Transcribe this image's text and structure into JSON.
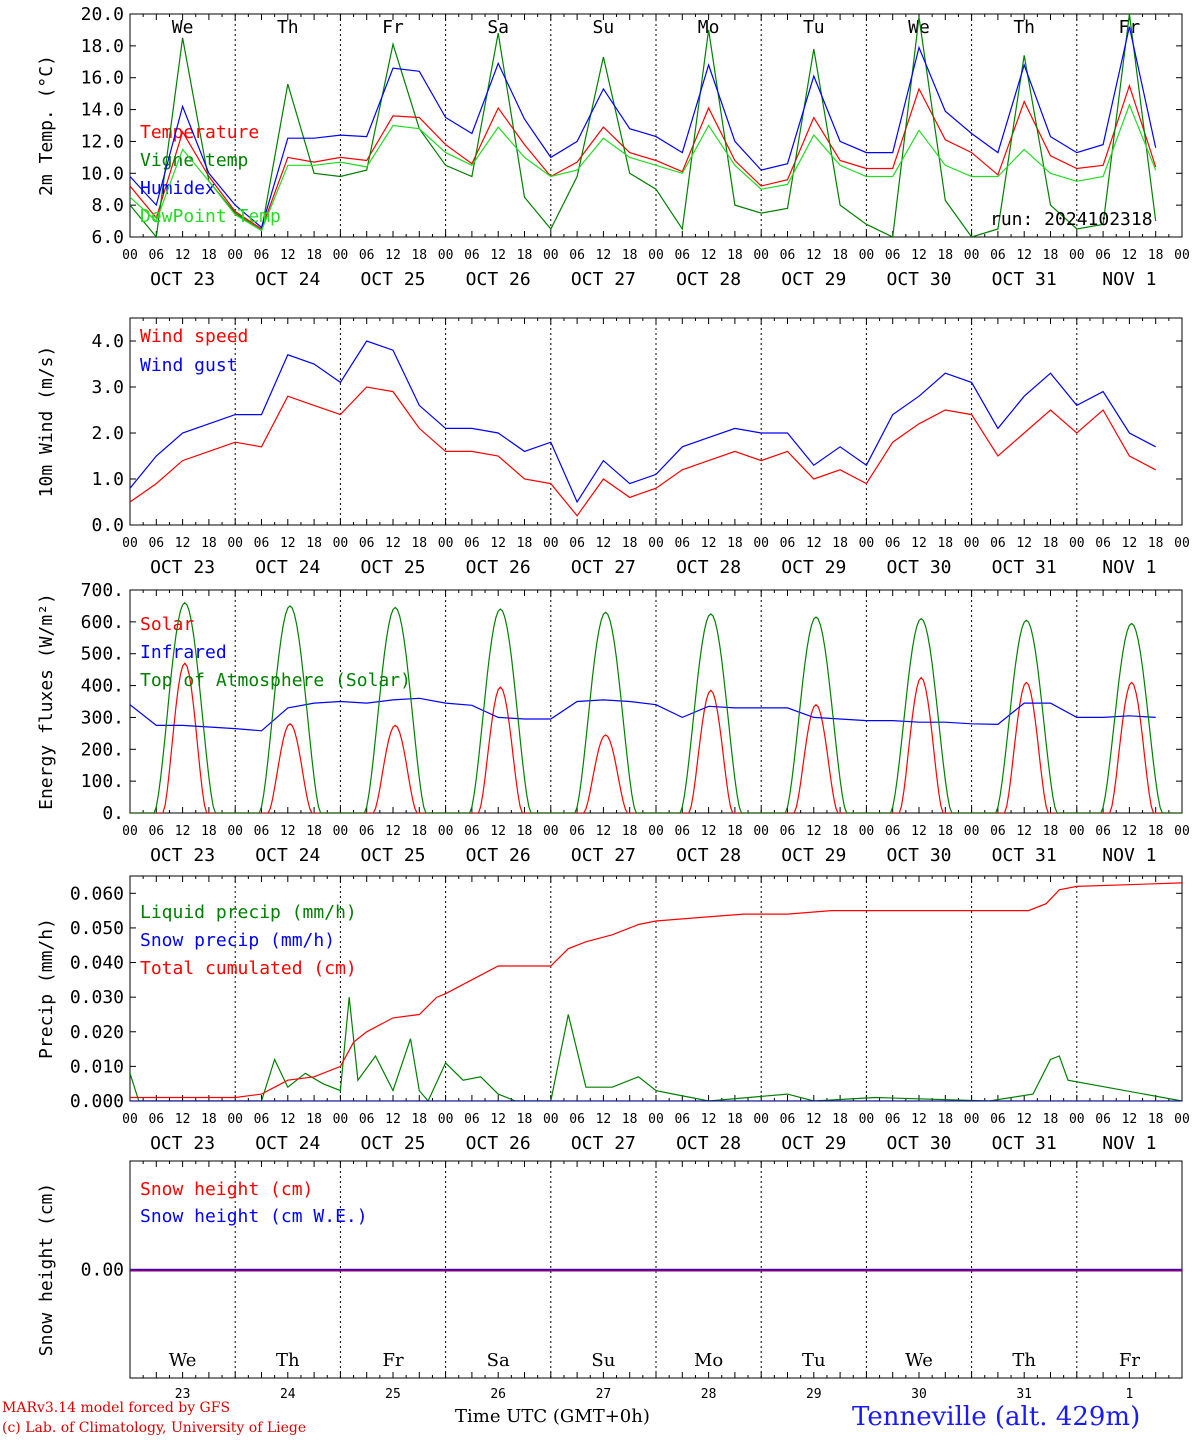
{
  "site": "Tenneville (alt. 429m)",
  "footer": [
    "MARv3.14 model forced by GFS",
    "(c) Lab. of Climatology, University of Liege"
  ],
  "xaxis_title": "Time UTC (GMT+0h)",
  "run": "run: 2024102318",
  "hour_ticks": [
    "00",
    "06",
    "12",
    "18"
  ],
  "date_labels": [
    "OCT 23",
    "OCT 24",
    "OCT 25",
    "OCT 26",
    "OCT 27",
    "OCT 28",
    "OCT 29",
    "OCT 30",
    "OCT 31",
    "NOV  1"
  ],
  "weekdays": [
    "We",
    "Th",
    "Fr",
    "Sa",
    "Su",
    "Mo",
    "Tu",
    "We",
    "Th",
    "Fr"
  ],
  "day_numbers": [
    "23",
    "24",
    "25",
    "26",
    "27",
    "28",
    "29",
    "30",
    "31",
    "1"
  ],
  "colors": {
    "red": "#ff0000",
    "green": "#008000",
    "blue": "#0000ff",
    "lightgreen": "#22dd22",
    "purple": "#800080",
    "weekend": "#ff0000"
  },
  "chart_data": [
    {
      "type": "line",
      "id": "temp",
      "ylabel": "2m Temp. (°C)",
      "ylim": [
        6,
        20
      ],
      "yticks": [
        "6.0",
        "8.0",
        "10.0",
        "12.0",
        "14.0",
        "16.0",
        "18.0",
        "20.0"
      ],
      "series": [
        {
          "name": "Temperature",
          "color": "#ff0000",
          "x": [
            0,
            6,
            12,
            18,
            24,
            30,
            36,
            42,
            48,
            54,
            60,
            66,
            72,
            78,
            84,
            90,
            96,
            102,
            108,
            114,
            120,
            126,
            132,
            138,
            144,
            150,
            156,
            162,
            168,
            174,
            180,
            186,
            192,
            198,
            204,
            210,
            216,
            222,
            228,
            234
          ],
          "values": [
            9.2,
            7.2,
            12.6,
            9.8,
            7.6,
            6.5,
            11.0,
            10.7,
            11.0,
            10.8,
            13.6,
            13.5,
            11.8,
            10.6,
            14.1,
            11.8,
            9.8,
            10.7,
            12.9,
            11.3,
            10.8,
            10.1,
            14.1,
            10.8,
            9.2,
            9.6,
            13.5,
            10.8,
            10.3,
            10.3,
            15.3,
            12.1,
            11.3,
            9.9,
            14.5,
            11.1,
            10.3,
            10.5,
            15.5,
            10.4
          ]
        },
        {
          "name": "Vigne temp",
          "color": "#008000",
          "x": [
            0,
            6,
            12,
            18,
            24,
            30,
            36,
            42,
            48,
            54,
            60,
            66,
            72,
            78,
            84,
            90,
            96,
            102,
            108,
            114,
            120,
            126,
            132,
            138,
            144,
            150,
            156,
            162,
            168,
            174,
            180,
            186,
            192,
            198,
            204,
            210,
            216,
            222,
            228,
            234
          ],
          "values": [
            8.0,
            6.0,
            18.5,
            9.5,
            7.5,
            6.4,
            15.6,
            10.0,
            9.8,
            10.2,
            18.1,
            12.8,
            10.5,
            9.8,
            18.8,
            8.5,
            6.5,
            9.8,
            17.3,
            10.0,
            9.0,
            6.5,
            19.0,
            8.0,
            7.5,
            7.8,
            17.8,
            8.0,
            6.8,
            6.0,
            19.8,
            8.3,
            6.0,
            6.5,
            17.4,
            8.0,
            6.5,
            6.8,
            20.0,
            7.0
          ]
        },
        {
          "name": "Humidex",
          "color": "#0000ff",
          "x": [
            0,
            6,
            12,
            18,
            24,
            30,
            36,
            42,
            48,
            54,
            60,
            66,
            72,
            78,
            84,
            90,
            96,
            102,
            108,
            114,
            120,
            126,
            132,
            138,
            144,
            150,
            156,
            162,
            168,
            174,
            180,
            186,
            192,
            198,
            204,
            210,
            216,
            222,
            228,
            234
          ],
          "values": [
            9.8,
            8.0,
            14.2,
            10.0,
            8.0,
            6.6,
            12.2,
            12.2,
            12.4,
            12.3,
            16.6,
            16.4,
            13.5,
            12.5,
            16.9,
            13.4,
            11.0,
            12.0,
            15.3,
            12.8,
            12.3,
            11.3,
            16.8,
            12.0,
            10.2,
            10.6,
            16.1,
            12.0,
            11.3,
            11.3,
            17.9,
            13.9,
            12.5,
            11.3,
            16.8,
            12.3,
            11.3,
            11.8,
            19.2,
            11.6
          ]
        },
        {
          "name": "DewPoint Temp",
          "color": "#22dd22",
          "x": [
            0,
            6,
            12,
            18,
            24,
            30,
            36,
            42,
            48,
            54,
            60,
            66,
            72,
            78,
            84,
            90,
            96,
            102,
            108,
            114,
            120,
            126,
            132,
            138,
            144,
            150,
            156,
            162,
            168,
            174,
            180,
            186,
            192,
            198,
            204,
            210,
            216,
            222,
            228,
            234
          ],
          "values": [
            8.5,
            7.0,
            11.5,
            9.5,
            7.4,
            6.4,
            10.5,
            10.5,
            10.7,
            10.4,
            13.0,
            12.8,
            11.3,
            10.5,
            12.9,
            11.0,
            9.8,
            10.2,
            12.2,
            11.0,
            10.5,
            10.0,
            13.0,
            10.5,
            9.0,
            9.3,
            12.4,
            10.5,
            9.8,
            9.8,
            12.7,
            10.5,
            9.8,
            9.8,
            11.5,
            10.0,
            9.5,
            9.8,
            14.3,
            10.2
          ]
        }
      ]
    },
    {
      "type": "line",
      "id": "wind",
      "ylabel": "10m Wind (m/s)",
      "ylim": [
        0,
        4.5
      ],
      "yticks": [
        "0.0",
        "1.0",
        "2.0",
        "3.0",
        "4.0"
      ],
      "series": [
        {
          "name": "Wind speed",
          "color": "#ff0000",
          "x": [
            0,
            6,
            12,
            18,
            24,
            30,
            36,
            42,
            48,
            54,
            60,
            66,
            72,
            78,
            84,
            90,
            96,
            102,
            108,
            114,
            120,
            126,
            132,
            138,
            144,
            150,
            156,
            162,
            168,
            174,
            180,
            186,
            192,
            198,
            204,
            210,
            216,
            222,
            228,
            234
          ],
          "values": [
            0.5,
            0.9,
            1.4,
            1.6,
            1.8,
            1.7,
            2.8,
            2.6,
            2.4,
            3.0,
            2.9,
            2.1,
            1.6,
            1.6,
            1.5,
            1.0,
            0.9,
            0.2,
            1.0,
            0.6,
            0.8,
            1.2,
            1.4,
            1.6,
            1.4,
            1.6,
            1.0,
            1.2,
            0.9,
            1.8,
            2.2,
            2.5,
            2.4,
            1.5,
            2.0,
            2.5,
            2.0,
            2.5,
            1.5,
            1.2
          ]
        },
        {
          "name": "Wind gust",
          "color": "#0000ff",
          "x": [
            0,
            6,
            12,
            18,
            24,
            30,
            36,
            42,
            48,
            54,
            60,
            66,
            72,
            78,
            84,
            90,
            96,
            102,
            108,
            114,
            120,
            126,
            132,
            138,
            144,
            150,
            156,
            162,
            168,
            174,
            180,
            186,
            192,
            198,
            204,
            210,
            216,
            222,
            228,
            234
          ],
          "values": [
            0.8,
            1.5,
            2.0,
            2.2,
            2.4,
            2.4,
            3.7,
            3.5,
            3.1,
            4.0,
            3.8,
            2.6,
            2.1,
            2.1,
            2.0,
            1.6,
            1.8,
            0.5,
            1.4,
            0.9,
            1.1,
            1.7,
            1.9,
            2.1,
            2.0,
            2.0,
            1.3,
            1.7,
            1.3,
            2.4,
            2.8,
            3.3,
            3.1,
            2.1,
            2.8,
            3.3,
            2.6,
            2.9,
            2.0,
            1.7
          ]
        }
      ]
    },
    {
      "type": "line",
      "id": "flux",
      "ylabel": "Energy fluxes (W/m²)",
      "ylim": [
        0,
        700
      ],
      "yticks": [
        "0.",
        "100.",
        "200.",
        "300.",
        "400.",
        "500.",
        "600.",
        "700."
      ],
      "series": [
        {
          "name": "Solar",
          "color": "#ff0000",
          "peaks": [
            470,
            280,
            275,
            395,
            245,
            385,
            340,
            425,
            410,
            410
          ]
        },
        {
          "name": "Infrared",
          "color": "#0000ff",
          "x": [
            0,
            6,
            12,
            18,
            24,
            30,
            36,
            42,
            48,
            54,
            60,
            66,
            72,
            78,
            84,
            90,
            96,
            102,
            108,
            114,
            120,
            126,
            132,
            138,
            144,
            150,
            156,
            162,
            168,
            174,
            180,
            186,
            192,
            198,
            204,
            210,
            216,
            222,
            228,
            234
          ],
          "values": [
            340,
            275,
            275,
            270,
            265,
            258,
            330,
            345,
            350,
            345,
            355,
            360,
            345,
            338,
            300,
            295,
            295,
            350,
            355,
            350,
            340,
            300,
            335,
            330,
            330,
            330,
            300,
            295,
            290,
            290,
            285,
            285,
            280,
            278,
            345,
            345,
            300,
            300,
            305,
            300
          ]
        },
        {
          "name": "Top of Atmosphere (Solar)",
          "color": "#008000",
          "peaks": [
            660,
            650,
            645,
            640,
            630,
            625,
            615,
            610,
            605,
            595
          ]
        }
      ]
    },
    {
      "type": "line",
      "id": "precip",
      "ylabel": "Precip (mm/h)",
      "ylim": [
        0,
        0.065
      ],
      "yticks": [
        "0.000",
        "0.010",
        "0.020",
        "0.030",
        "0.040",
        "0.050",
        "0.060"
      ],
      "series": [
        {
          "name": "Liquid precip (mm/h)",
          "color": "#008000",
          "x": [
            0,
            2,
            6,
            24,
            30,
            33,
            36,
            40,
            44,
            48,
            50,
            52,
            56,
            60,
            64,
            66,
            68,
            72,
            76,
            80,
            84,
            88,
            96,
            100,
            104,
            110,
            116,
            120,
            124,
            128,
            132,
            150,
            156,
            170,
            196,
            206,
            210,
            212,
            214,
            240
          ],
          "values": [
            0.008,
            0,
            0,
            0,
            0,
            0.012,
            0.004,
            0.008,
            0.005,
            0.003,
            0.03,
            0.006,
            0.013,
            0.003,
            0.018,
            0.003,
            0,
            0.011,
            0.006,
            0.007,
            0.002,
            0,
            0,
            0.025,
            0.004,
            0.004,
            0.007,
            0.003,
            0.002,
            0.001,
            0,
            0.002,
            0,
            0.001,
            0,
            0.002,
            0.012,
            0.013,
            0.006,
            0
          ]
        },
        {
          "name": "Snow precip (mm/h)",
          "color": "#0000ff",
          "x": [
            0,
            240
          ],
          "values": [
            0,
            0
          ]
        },
        {
          "name": "Total cumulated (cm)",
          "color": "#ff0000",
          "x": [
            0,
            24,
            30,
            33,
            36,
            42,
            48,
            51,
            54,
            60,
            66,
            70,
            72,
            78,
            84,
            96,
            100,
            104,
            110,
            116,
            120,
            130,
            140,
            150,
            160,
            170,
            190,
            205,
            209,
            212,
            216,
            240
          ],
          "values": [
            0.001,
            0.001,
            0.002,
            0.004,
            0.006,
            0.007,
            0.01,
            0.017,
            0.02,
            0.024,
            0.025,
            0.03,
            0.031,
            0.035,
            0.039,
            0.039,
            0.044,
            0.046,
            0.048,
            0.051,
            0.052,
            0.053,
            0.054,
            0.054,
            0.055,
            0.055,
            0.055,
            0.055,
            0.057,
            0.061,
            0.062,
            0.063
          ]
        }
      ]
    },
    {
      "type": "line",
      "id": "snow",
      "ylabel": "Snow height (cm)",
      "ylim": [
        -1,
        1
      ],
      "yticks": [
        "0.00"
      ],
      "series": [
        {
          "name": "Snow height (cm)",
          "color": "#ff0000",
          "x": [
            0,
            240
          ],
          "values": [
            0,
            0
          ]
        },
        {
          "name": "Snow height (cm W.E.)",
          "color": "#0000ff",
          "x": [
            0,
            240
          ],
          "values": [
            0,
            0
          ]
        }
      ]
    }
  ]
}
